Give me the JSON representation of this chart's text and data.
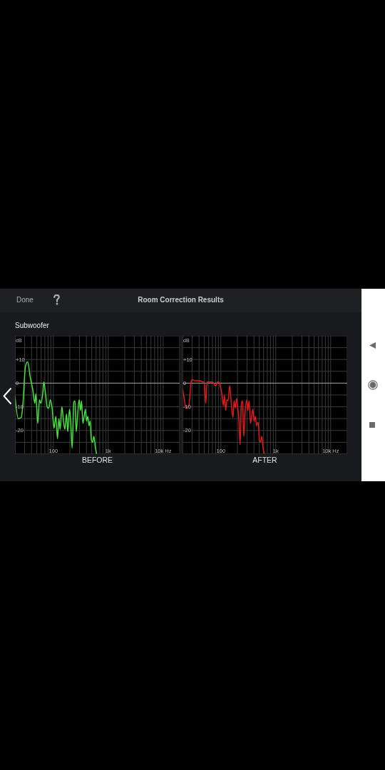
{
  "chart_data": [
    {
      "type": "line",
      "title": "Room Correction Results",
      "subtitle": "Subwoofer",
      "annotations": [
        "Done"
      ],
      "xlabel": "BEFORE",
      "ylabel": "dB",
      "x": [
        20,
        23,
        26,
        28,
        31,
        34,
        38,
        42,
        46,
        48,
        52,
        56,
        59,
        64,
        67,
        72,
        78,
        83,
        88,
        95,
        103,
        111,
        119,
        126,
        133,
        143,
        153,
        162,
        174,
        183,
        197,
        207,
        220,
        236,
        248,
        261,
        275,
        295,
        313,
        326,
        346,
        364,
        383,
        403,
        424,
        446,
        469,
        493,
        519,
        546,
        586,
        615
      ],
      "series": [
        {
          "color": "#45e33c",
          "values": [
            -5.5,
            -15,
            -14.5,
            -8.5,
            7,
            9,
            2.5,
            -2.5,
            -8.5,
            -4.5,
            -17,
            -7,
            -8.5,
            -4.5,
            0.5,
            -4.5,
            -10.5,
            -10.5,
            -7,
            -10.5,
            -19,
            -14,
            -23.5,
            -15,
            -19.5,
            -10,
            -16,
            -19.5,
            -13,
            -20.5,
            -11,
            -16,
            -27.5,
            -8,
            -7.5,
            -20.5,
            -14.5,
            -7,
            -11.5,
            -7.5,
            -17,
            -14,
            -11,
            -16,
            -14,
            -18,
            -16,
            -24,
            -25,
            -22.5,
            -27.5,
            -30
          ]
        }
      ],
      "xlim": [
        20,
        20000
      ],
      "ylim": [
        -30,
        20
      ],
      "xticks": [
        {
          "value": 20,
          "label": null
        },
        {
          "value": 30,
          "label": null
        },
        {
          "value": 40,
          "label": null
        },
        {
          "value": 50,
          "label": null
        },
        {
          "value": 60,
          "label": null
        },
        {
          "value": 70,
          "label": null
        },
        {
          "value": 80,
          "label": null
        },
        {
          "value": 90,
          "label": null
        },
        {
          "value": 100,
          "label": "100"
        },
        {
          "value": 200,
          "label": null
        },
        {
          "value": 300,
          "label": null
        },
        {
          "value": 400,
          "label": null
        },
        {
          "value": 500,
          "label": null
        },
        {
          "value": 600,
          "label": null
        },
        {
          "value": 700,
          "label": null
        },
        {
          "value": 800,
          "label": null
        },
        {
          "value": 900,
          "label": null
        },
        {
          "value": 1000,
          "label": "1k"
        },
        {
          "value": 2000,
          "label": null
        },
        {
          "value": 3000,
          "label": null
        },
        {
          "value": 4000,
          "label": null
        },
        {
          "value": 5000,
          "label": null
        },
        {
          "value": 6000,
          "label": null
        },
        {
          "value": 7000,
          "label": null
        },
        {
          "value": 8000,
          "label": null
        },
        {
          "value": 9000,
          "label": null
        },
        {
          "value": 10000,
          "label": "10k Hz"
        },
        {
          "value": 20000,
          "label": null
        }
      ],
      "yticks": [
        {
          "value": 15,
          "label": null
        },
        {
          "value": 10,
          "label": "+10"
        },
        {
          "value": 5,
          "label": null
        },
        0,
        {
          "value": -5,
          "label": null
        },
        -10,
        {
          "value": -15,
          "label": null
        },
        -20,
        {
          "value": -25,
          "label": null
        }
      ],
      "log": "x",
      "grid": true,
      "ref_lines": [
        {
          "axis": "y",
          "value": 0,
          "color": "#a0a0a0"
        }
      ]
    },
    {
      "type": "line",
      "xlabel": "AFTER",
      "ylabel": "dB",
      "x": [
        20,
        21.5,
        23,
        26,
        29,
        30.5,
        33,
        36.5,
        42,
        47,
        50,
        53,
        56,
        64,
        68,
        74,
        78,
        82,
        86,
        92,
        100,
        105,
        111,
        116,
        122,
        129,
        135,
        145,
        154,
        166,
        174,
        183,
        193,
        203,
        213,
        224,
        236,
        248,
        261,
        275,
        295,
        310,
        326,
        346,
        364,
        383,
        403,
        424,
        446,
        479,
        503,
        529,
        556,
        591,
        627
      ],
      "series": [
        {
          "color": "#e3191b",
          "values": [
            -2.5,
            -6.5,
            -10.5,
            -9.5,
            1,
            1.5,
            1,
            1,
            1,
            0.5,
            0.5,
            -8.5,
            0.5,
            0.5,
            0.5,
            0,
            -1,
            -1,
            0.5,
            0.5,
            -2.5,
            -5,
            -9.5,
            -5,
            -11.5,
            -7,
            -7.5,
            -1,
            -8.5,
            -14.5,
            -7.5,
            -10.5,
            -6.5,
            -10.5,
            -15.5,
            -26,
            -8.5,
            -7.5,
            -22.5,
            -13,
            -7,
            -11.5,
            -7.5,
            -17,
            -14,
            -11,
            -16,
            -14,
            -18,
            -16.5,
            -24,
            -25,
            -22.5,
            -28,
            -30
          ]
        }
      ],
      "xlim": [
        20,
        20000
      ],
      "ylim": [
        -30,
        20
      ],
      "xticks": [
        {
          "value": 20,
          "label": null
        },
        {
          "value": 30,
          "label": null
        },
        {
          "value": 40,
          "label": null
        },
        {
          "value": 50,
          "label": null
        },
        {
          "value": 60,
          "label": null
        },
        {
          "value": 70,
          "label": null
        },
        {
          "value": 80,
          "label": null
        },
        {
          "value": 90,
          "label": null
        },
        {
          "value": 100,
          "label": "100"
        },
        {
          "value": 200,
          "label": null
        },
        {
          "value": 300,
          "label": null
        },
        {
          "value": 400,
          "label": null
        },
        {
          "value": 500,
          "label": null
        },
        {
          "value": 600,
          "label": null
        },
        {
          "value": 700,
          "label": null
        },
        {
          "value": 800,
          "label": null
        },
        {
          "value": 900,
          "label": null
        },
        {
          "value": 1000,
          "label": "1k"
        },
        {
          "value": 2000,
          "label": null
        },
        {
          "value": 3000,
          "label": null
        },
        {
          "value": 4000,
          "label": null
        },
        {
          "value": 5000,
          "label": null
        },
        {
          "value": 6000,
          "label": null
        },
        {
          "value": 7000,
          "label": null
        },
        {
          "value": 8000,
          "label": null
        },
        {
          "value": 9000,
          "label": null
        },
        {
          "value": 10000,
          "label": "10k Hz"
        },
        {
          "value": 20000,
          "label": null
        }
      ],
      "yticks": [
        {
          "value": 15,
          "label": null
        },
        {
          "value": 10,
          "label": "+10"
        },
        {
          "value": 5,
          "label": null
        },
        0,
        {
          "value": -5,
          "label": null
        },
        -10,
        {
          "value": -15,
          "label": null
        },
        -20,
        {
          "value": -25,
          "label": null
        }
      ],
      "log": "x",
      "grid": true,
      "ref_lines": [
        {
          "axis": "y",
          "value": 0,
          "color": "#a0a0a0"
        }
      ]
    }
  ]
}
